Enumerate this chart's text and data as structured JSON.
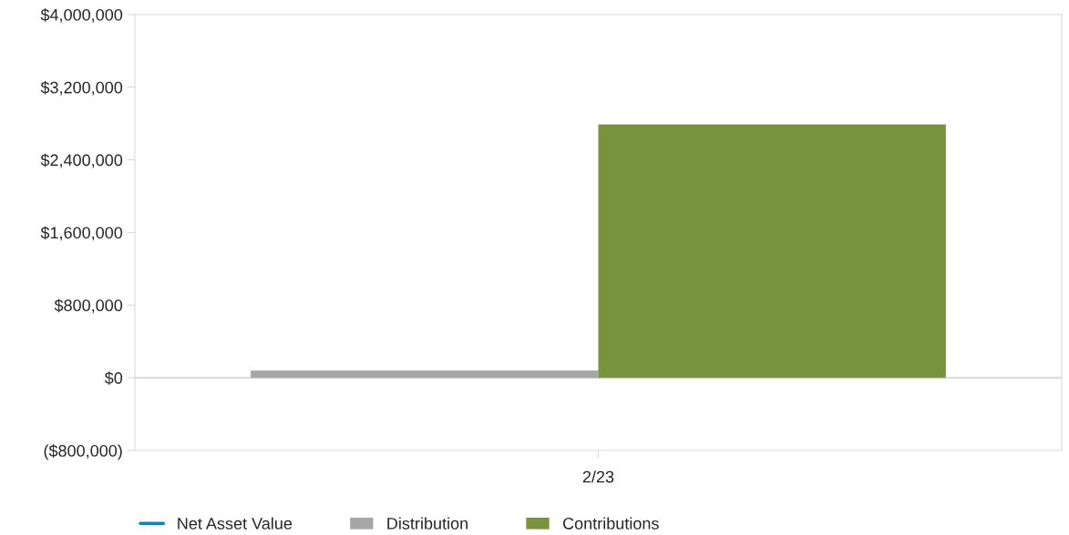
{
  "chart_data": {
    "type": "bar",
    "categories": [
      "2/23"
    ],
    "series": [
      {
        "name": "Net Asset Value",
        "type": "line",
        "color": "#0a84c6",
        "values": [
          null
        ]
      },
      {
        "name": "Distribution",
        "color": "#a6a6a6",
        "values": [
          80000
        ]
      },
      {
        "name": "Contributions",
        "color": "#77933c",
        "values": [
          2790000
        ]
      }
    ],
    "ylim": [
      -800000,
      4000000
    ],
    "yticks": [
      {
        "value": -800000,
        "label": "($800,000)"
      },
      {
        "value": 0,
        "label": "$0"
      },
      {
        "value": 800000,
        "label": "$800,000"
      },
      {
        "value": 1600000,
        "label": "$1,600,000"
      },
      {
        "value": 2400000,
        "label": "$2,400,000"
      },
      {
        "value": 3200000,
        "label": "$3,200,000"
      },
      {
        "value": 4000000,
        "label": "$4,000,000"
      }
    ],
    "ref_lines": [
      {
        "axis": "y",
        "value": 0,
        "color": "#d9d9d9"
      }
    ],
    "grid": false,
    "legend": "bottom left"
  }
}
